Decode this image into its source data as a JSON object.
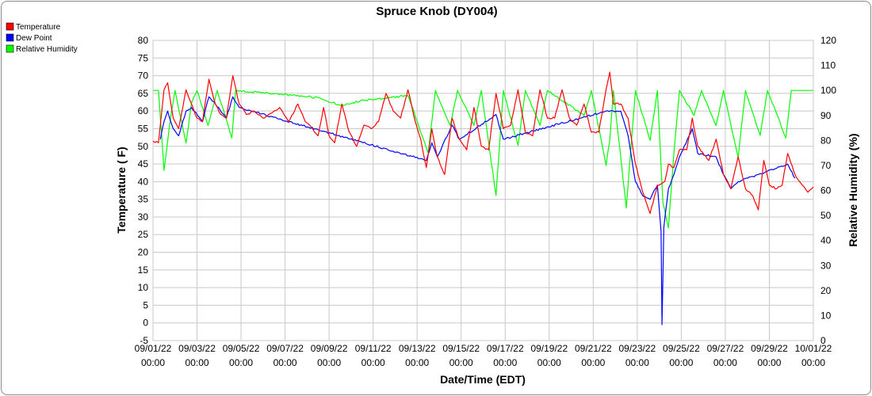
{
  "chart_data": {
    "type": "line",
    "title": "Spruce Knob (DY004)",
    "xlabel": "Date/Time (EDT)",
    "ylabel": "Temperature ( F)",
    "y2label": "Relative Humidity (%)",
    "ylim": [
      -5,
      80
    ],
    "y2lim": [
      0,
      120
    ],
    "yticks": [
      "80",
      "75",
      "70",
      "65",
      "60",
      "55",
      "50",
      "45",
      "40",
      "35",
      "30",
      "25",
      "20",
      "15",
      "10",
      "5",
      "0",
      "-5"
    ],
    "y2ticks": [
      "120",
      "110",
      "100",
      "90",
      "80",
      "70",
      "60",
      "50",
      "40",
      "30",
      "20",
      "10",
      "0"
    ],
    "xticks": [
      {
        "date": "09/01/22",
        "time": "00:00"
      },
      {
        "date": "09/03/22",
        "time": "00:00"
      },
      {
        "date": "09/05/22",
        "time": "00:00"
      },
      {
        "date": "09/07/22",
        "time": "00:00"
      },
      {
        "date": "09/09/22",
        "time": "00:00"
      },
      {
        "date": "09/11/22",
        "time": "00:00"
      },
      {
        "date": "09/13/22",
        "time": "00:00"
      },
      {
        "date": "09/15/22",
        "time": "00:00"
      },
      {
        "date": "09/17/22",
        "time": "00:00"
      },
      {
        "date": "09/19/22",
        "time": "00:00"
      },
      {
        "date": "09/21/22",
        "time": "00:00"
      },
      {
        "date": "09/23/22",
        "time": "00:00"
      },
      {
        "date": "09/25/22",
        "time": "00:00"
      },
      {
        "date": "09/27/22",
        "time": "00:00"
      },
      {
        "date": "09/29/22",
        "time": "00:00"
      },
      {
        "date": "10/01/22",
        "time": "00:00"
      }
    ],
    "xlim": [
      "09/01/22 00:00",
      "10/01/22 00:00"
    ],
    "grid": true,
    "legend_position": "top-left",
    "series": [
      {
        "name": "Temperature",
        "axis": "left",
        "color": "#ff0000",
        "points": [
          [
            "09/01/22 00:00",
            51.5
          ],
          [
            "09/01/22 06:00",
            51
          ],
          [
            "09/01/22 12:00",
            66
          ],
          [
            "09/01/22 16:00",
            68
          ],
          [
            "09/01/22 22:00",
            58
          ],
          [
            "09/02/22 04:00",
            55
          ],
          [
            "09/02/22 12:00",
            66
          ],
          [
            "09/02/22 18:00",
            62
          ],
          [
            "09/03/22 00:00",
            58
          ],
          [
            "09/03/22 06:00",
            57
          ],
          [
            "09/03/22 13:00",
            69
          ],
          [
            "09/03/22 20:00",
            62
          ],
          [
            "09/04/22 02:00",
            59
          ],
          [
            "09/04/22 08:00",
            58
          ],
          [
            "09/04/22 15:00",
            70
          ],
          [
            "09/04/22 22:00",
            62
          ],
          [
            "09/05/22 06:00",
            59
          ],
          [
            "09/05/22 14:00",
            60
          ],
          [
            "09/06/22 00:00",
            58
          ],
          [
            "09/06/22 12:00",
            60
          ],
          [
            "09/06/22 18:00",
            61
          ],
          [
            "09/07/22 04:00",
            57
          ],
          [
            "09/07/22 14:00",
            62
          ],
          [
            "09/07/22 22:00",
            57
          ],
          [
            "09/08/22 06:00",
            55
          ],
          [
            "09/08/22 12:00",
            53
          ],
          [
            "09/08/22 18:00",
            61
          ],
          [
            "09/09/22 00:00",
            53
          ],
          [
            "09/09/22 06:00",
            51
          ],
          [
            "09/09/22 14:00",
            62
          ],
          [
            "09/09/22 22:00",
            54
          ],
          [
            "09/10/22 06:00",
            50
          ],
          [
            "09/10/22 14:00",
            56
          ],
          [
            "09/10/22 22:00",
            55
          ],
          [
            "09/11/22 06:00",
            57
          ],
          [
            "09/11/22 14:00",
            65
          ],
          [
            "09/11/22 22:00",
            60
          ],
          [
            "09/12/22 06:00",
            58
          ],
          [
            "09/12/22 14:00",
            66
          ],
          [
            "09/12/22 22:00",
            57
          ],
          [
            "09/13/22 04:00",
            52
          ],
          [
            "09/13/22 10:00",
            44
          ],
          [
            "09/13/22 16:00",
            55
          ],
          [
            "09/13/22 22:00",
            47
          ],
          [
            "09/14/22 06:00",
            42
          ],
          [
            "09/14/22 14:00",
            58
          ],
          [
            "09/14/22 22:00",
            52
          ],
          [
            "09/15/22 06:00",
            49
          ],
          [
            "09/15/22 14:00",
            61
          ],
          [
            "09/15/22 22:00",
            50
          ],
          [
            "09/16/22 06:00",
            49
          ],
          [
            "09/16/22 14:00",
            65
          ],
          [
            "09/16/22 22:00",
            55
          ],
          [
            "09/17/22 06:00",
            56
          ],
          [
            "09/17/22 14:00",
            66
          ],
          [
            "09/17/22 22:00",
            54
          ],
          [
            "09/18/22 06:00",
            53
          ],
          [
            "09/18/22 14:00",
            66
          ],
          [
            "09/18/22 22:00",
            58
          ],
          [
            "09/19/22 06:00",
            58
          ],
          [
            "09/19/22 14:00",
            66
          ],
          [
            "09/19/22 22:00",
            58
          ],
          [
            "09/20/22 06:00",
            56
          ],
          [
            "09/20/22 14:00",
            62
          ],
          [
            "09/20/22 22:00",
            54
          ],
          [
            "09/21/22 06:00",
            54
          ],
          [
            "09/21/22 14:00",
            66
          ],
          [
            "09/21/22 18:00",
            71
          ],
          [
            "09/21/22 22:00",
            62
          ],
          [
            "09/22/22 06:00",
            62
          ],
          [
            "09/22/22 14:00",
            58
          ],
          [
            "09/22/22 22:00",
            45
          ],
          [
            "09/23/22 06:00",
            37
          ],
          [
            "09/23/22 14:00",
            31
          ],
          [
            "09/23/22 22:00",
            39
          ],
          [
            "09/24/22 06:00",
            40
          ],
          [
            "09/24/22 10:00",
            45
          ],
          [
            "09/24/22 16:00",
            44
          ],
          [
            "09/24/22 22:00",
            49
          ],
          [
            "09/25/22 06:00",
            49
          ],
          [
            "09/25/22 12:00",
            58
          ],
          [
            "09/25/22 18:00",
            50
          ],
          [
            "09/26/22 06:00",
            46
          ],
          [
            "09/26/22 14:00",
            52
          ],
          [
            "09/26/22 22:00",
            42
          ],
          [
            "09/27/22 06:00",
            38
          ],
          [
            "09/27/22 14:00",
            47
          ],
          [
            "09/27/22 22:00",
            38
          ],
          [
            "09/28/22 06:00",
            36
          ],
          [
            "09/28/22 12:00",
            32
          ],
          [
            "09/28/22 18:00",
            46
          ],
          [
            "09/29/22 00:00",
            39
          ],
          [
            "09/29/22 08:00",
            38
          ],
          [
            "09/29/22 14:00",
            39
          ],
          [
            "09/29/22 20:00",
            48
          ],
          [
            "09/30/22 04:00",
            42
          ],
          [
            "09/30/22 12:00",
            39
          ],
          [
            "09/30/22 18:00",
            37
          ],
          [
            "10/01/22 00:00",
            38.5
          ]
        ]
      },
      {
        "name": "Dew Point",
        "axis": "left",
        "color": "#0000ff",
        "points": [
          [
            "09/01/22 08:00",
            52
          ],
          [
            "09/01/22 12:00",
            57
          ],
          [
            "09/01/22 16:00",
            60
          ],
          [
            "09/01/22 22:00",
            55
          ],
          [
            "09/02/22 04:00",
            53
          ],
          [
            "09/02/22 12:00",
            60
          ],
          [
            "09/02/22 18:00",
            61
          ],
          [
            "09/03/22 06:00",
            57
          ],
          [
            "09/03/22 13:00",
            64
          ],
          [
            "09/03/22 20:00",
            62
          ],
          [
            "09/04/22 08:00",
            58
          ],
          [
            "09/04/22 15:00",
            64
          ],
          [
            "09/04/22 22:00",
            61
          ],
          [
            "09/13/22 10:00",
            46
          ],
          [
            "09/13/22 16:00",
            51
          ],
          [
            "09/13/22 22:00",
            47
          ],
          [
            "09/14/22 14:00",
            56
          ],
          [
            "09/14/22 22:00",
            52
          ],
          [
            "09/16/22 14:00",
            59
          ],
          [
            "09/16/22 22:00",
            52
          ],
          [
            "09/21/22 14:00",
            60
          ],
          [
            "09/21/22 22:00",
            60
          ],
          [
            "09/22/22 06:00",
            60
          ],
          [
            "09/22/22 14:00",
            53
          ],
          [
            "09/22/22 22:00",
            40
          ],
          [
            "09/23/22 06:00",
            36
          ],
          [
            "09/23/22 14:00",
            35
          ],
          [
            "09/23/22 22:00",
            39
          ],
          [
            "09/24/22 02:00",
            26
          ],
          [
            "09/24/22 03:00",
            -0.5
          ],
          [
            "09/24/22 05:00",
            27
          ],
          [
            "09/24/22 10:00",
            38
          ],
          [
            "09/24/22 16:00",
            42
          ],
          [
            "09/24/22 22:00",
            47
          ],
          [
            "09/25/22 12:00",
            55
          ],
          [
            "09/25/22 18:00",
            48
          ],
          [
            "09/26/22 14:00",
            47
          ],
          [
            "09/26/22 22:00",
            42
          ],
          [
            "09/27/22 06:00",
            38
          ],
          [
            "09/27/22 14:00",
            40
          ],
          [
            "09/29/22 20:00",
            45
          ],
          [
            "09/30/22 04:00",
            41
          ]
        ]
      },
      {
        "name": "Relative Humidity",
        "axis": "right",
        "color": "#00ff00",
        "points": [
          [
            "09/01/22 00:00",
            100
          ],
          [
            "09/01/22 06:00",
            100
          ],
          [
            "09/01/22 12:00",
            68
          ],
          [
            "09/01/22 18:00",
            86
          ],
          [
            "09/02/22 00:00",
            100
          ],
          [
            "09/02/22 12:00",
            79
          ],
          [
            "09/02/22 18:00",
            95
          ],
          [
            "09/03/22 00:00",
            100
          ],
          [
            "09/03/22 12:00",
            86
          ],
          [
            "09/03/22 22:00",
            100
          ],
          [
            "09/04/22 14:00",
            81
          ],
          [
            "09/04/22 18:00",
            100
          ],
          [
            "09/08/22 14:00",
            97
          ],
          [
            "09/09/22 12:00",
            94
          ],
          [
            "09/10/22 14:00",
            96
          ],
          [
            "09/12/22 14:00",
            98
          ],
          [
            "09/13/22 12:00",
            75
          ],
          [
            "09/13/22 20:00",
            100
          ],
          [
            "09/14/22 12:00",
            86
          ],
          [
            "09/14/22 20:00",
            100
          ],
          [
            "09/15/22 14:00",
            86
          ],
          [
            "09/15/22 22:00",
            100
          ],
          [
            "09/16/22 14:00",
            58
          ],
          [
            "09/16/22 22:00",
            100
          ],
          [
            "09/17/22 14:00",
            78
          ],
          [
            "09/17/22 22:00",
            100
          ],
          [
            "09/18/22 14:00",
            86
          ],
          [
            "09/18/22 22:00",
            100
          ],
          [
            "09/20/22 14:00",
            90
          ],
          [
            "09/20/22 22:00",
            100
          ],
          [
            "09/21/22 14:00",
            70
          ],
          [
            "09/21/22 18:00",
            80
          ],
          [
            "09/21/22 22:00",
            100
          ],
          [
            "09/22/22 12:00",
            53
          ],
          [
            "09/22/22 22:00",
            100
          ],
          [
            "09/23/22 14:00",
            80
          ],
          [
            "09/23/22 22:00",
            100
          ],
          [
            "09/24/22 04:00",
            55
          ],
          [
            "09/24/22 10:00",
            45
          ],
          [
            "09/24/22 16:00",
            75
          ],
          [
            "09/24/22 22:00",
            100
          ],
          [
            "09/25/22 14:00",
            90
          ],
          [
            "09/25/22 22:00",
            100
          ],
          [
            "09/26/22 14:00",
            86
          ],
          [
            "09/26/22 22:00",
            100
          ],
          [
            "09/27/22 14:00",
            73
          ],
          [
            "09/27/22 22:00",
            100
          ],
          [
            "09/28/22 14:00",
            82
          ],
          [
            "09/28/22 22:00",
            100
          ],
          [
            "09/29/22 18:00",
            81
          ],
          [
            "09/30/22 00:00",
            100
          ],
          [
            "10/01/22 00:00",
            100
          ]
        ]
      }
    ]
  }
}
